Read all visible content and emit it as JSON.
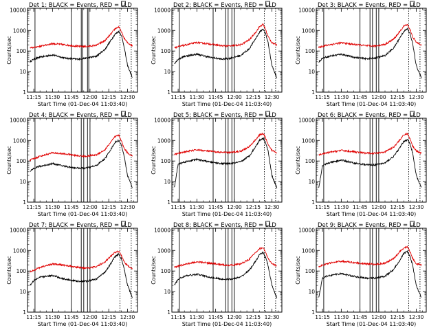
{
  "x_tick_labels": [
    "11:15",
    "11:30",
    "11:45",
    "12:00",
    "12:15",
    "12:30"
  ],
  "y_tick_labels": [
    "1",
    "10",
    "100",
    "1000",
    "10000"
  ],
  "chart_data": [
    {
      "type": "line",
      "title": "Det 1: BLACK = Events, RED = LLD",
      "xlabel": "Start Time (01-Dec-04 11:03:40)",
      "ylabel": "Counts/sec",
      "y_scale": "log",
      "ylim": [
        1,
        12000
      ],
      "xlim": [
        "11:10",
        "12:38"
      ],
      "x": [
        "11:12",
        "11:15",
        "11:20",
        "11:30",
        "11:40",
        "11:50",
        "11:57",
        "12:05",
        "12:12",
        "12:17",
        "12:20",
        "12:23",
        "12:25",
        "12:27",
        "12:30",
        "12:34"
      ],
      "series": [
        {
          "name": "BLACK = Events",
          "color": "#000000",
          "values": [
            30,
            40,
            50,
            65,
            45,
            40,
            45,
            55,
            120,
            350,
            650,
            900,
            600,
            200,
            20,
            5
          ]
        },
        {
          "name": "RED = LLD",
          "color": "#e00000",
          "values": [
            140,
            150,
            170,
            230,
            200,
            170,
            165,
            190,
            320,
            700,
            1200,
            1500,
            900,
            450,
            250,
            180
          ]
        }
      ],
      "vertical_lines": [
        "11:16",
        "11:45",
        "11:53",
        "11:54",
        "11:58",
        "11:59"
      ],
      "dotted_lines": [
        "12:24",
        "12:33"
      ]
    },
    {
      "type": "line",
      "title": "Det 2: BLACK = Events, RED = LLD",
      "xlabel": "Start Time (01-Dec-04 11:03:40)",
      "ylabel": "Counts/sec",
      "y_scale": "log",
      "ylim": [
        1,
        12000
      ],
      "xlim": [
        "11:10",
        "12:38"
      ],
      "x": [
        "11:12",
        "11:15",
        "11:20",
        "11:30",
        "11:40",
        "11:50",
        "11:57",
        "12:05",
        "12:12",
        "12:17",
        "12:20",
        "12:23",
        "12:25",
        "12:27",
        "12:30",
        "12:34"
      ],
      "series": [
        {
          "name": "BLACK = Events",
          "color": "#000000",
          "values": [
            25,
            40,
            55,
            70,
            50,
            40,
            45,
            60,
            130,
            400,
            800,
            1200,
            700,
            250,
            20,
            5
          ]
        },
        {
          "name": "RED = LLD",
          "color": "#e00000",
          "values": [
            150,
            160,
            190,
            260,
            220,
            180,
            175,
            200,
            350,
            800,
            1500,
            2000,
            1100,
            500,
            260,
            190
          ]
        }
      ],
      "vertical_lines": [
        "11:16",
        "11:43",
        "11:53",
        "11:55",
        "11:58",
        "12:00"
      ],
      "dotted_lines": [
        "12:24",
        "12:33"
      ]
    },
    {
      "type": "line",
      "title": "Det 3: BLACK = Events, RED = LLD",
      "xlabel": "Start Time (01-Dec-04 11:03:40)",
      "ylabel": "Counts/sec",
      "y_scale": "log",
      "ylim": [
        1,
        12000
      ],
      "xlim": [
        "11:10",
        "12:38"
      ],
      "x": [
        "11:12",
        "11:15",
        "11:20",
        "11:30",
        "11:40",
        "11:50",
        "11:57",
        "12:05",
        "12:12",
        "12:17",
        "12:20",
        "12:23",
        "12:25",
        "12:27",
        "12:30",
        "12:34"
      ],
      "series": [
        {
          "name": "BLACK = Events",
          "color": "#000000",
          "values": [
            30,
            45,
            55,
            70,
            50,
            42,
            45,
            60,
            140,
            450,
            900,
            1200,
            700,
            250,
            20,
            5
          ]
        },
        {
          "name": "RED = LLD",
          "color": "#e00000",
          "values": [
            150,
            170,
            200,
            250,
            210,
            180,
            175,
            210,
            380,
            900,
            1600,
            2000,
            1100,
            500,
            270,
            200
          ]
        }
      ],
      "vertical_lines": [
        "11:16",
        "11:45",
        "11:53",
        "11:55",
        "11:58",
        "12:00"
      ],
      "dotted_lines": [
        "12:24",
        "12:33"
      ]
    },
    {
      "type": "line",
      "title": "Det 4: BLACK = Events, RED = LLD",
      "xlabel": "Start Time (01-Dec-04 11:03:40)",
      "ylabel": "Counts/sec",
      "y_scale": "log",
      "ylim": [
        1,
        12000
      ],
      "xlim": [
        "11:10",
        "12:38"
      ],
      "x": [
        "11:12",
        "11:15",
        "11:20",
        "11:30",
        "11:40",
        "11:50",
        "11:57",
        "12:05",
        "12:12",
        "12:17",
        "12:20",
        "12:23",
        "12:25",
        "12:27",
        "12:30",
        "12:34"
      ],
      "series": [
        {
          "name": "BLACK = Events",
          "color": "#000000",
          "values": [
            30,
            45,
            55,
            75,
            55,
            45,
            45,
            60,
            130,
            400,
            800,
            1000,
            600,
            220,
            20,
            5
          ]
        },
        {
          "name": "RED = LLD",
          "color": "#e00000",
          "values": [
            110,
            130,
            170,
            250,
            220,
            180,
            170,
            200,
            350,
            900,
            1500,
            1800,
            1000,
            450,
            250,
            170
          ]
        }
      ],
      "vertical_lines": [
        "11:16",
        "11:45",
        "11:53",
        "11:55",
        "11:58",
        "12:00"
      ],
      "dotted_lines": [
        "12:24",
        "12:33"
      ]
    },
    {
      "type": "line",
      "title": "Det 5: BLACK = Events, RED = LLD",
      "xlabel": "Start Time (01-Dec-04 11:03:40)",
      "ylabel": "Counts/sec",
      "y_scale": "log",
      "ylim": [
        1,
        12000
      ],
      "xlim": [
        "11:10",
        "12:38"
      ],
      "x": [
        "11:12",
        "11:15",
        "11:20",
        "11:30",
        "11:40",
        "11:50",
        "11:57",
        "12:05",
        "12:12",
        "12:17",
        "12:20",
        "12:23",
        "12:25",
        "12:27",
        "12:30",
        "12:34"
      ],
      "series": [
        {
          "name": "BLACK = Events",
          "color": "#000000",
          "values": [
            5,
            70,
            90,
            120,
            90,
            75,
            75,
            90,
            180,
            500,
            1000,
            1300,
            800,
            300,
            20,
            5
          ]
        },
        {
          "name": "RED = LLD",
          "color": "#e00000",
          "values": [
            210,
            230,
            280,
            350,
            300,
            260,
            260,
            300,
            500,
            1100,
            1800,
            2200,
            1300,
            600,
            330,
            260
          ]
        }
      ],
      "vertical_lines": [
        "11:16",
        "11:43",
        "11:53",
        "11:55",
        "11:58",
        "12:00"
      ],
      "dotted_lines": [
        "12:24",
        "12:33"
      ]
    },
    {
      "type": "line",
      "title": "Det 6: BLACK = Events, RED = LLD",
      "xlabel": "Start Time (01-Dec-04 11:03:40)",
      "ylabel": "Counts/sec",
      "y_scale": "log",
      "ylim": [
        1,
        12000
      ],
      "xlim": [
        "11:10",
        "12:38"
      ],
      "x": [
        "11:12",
        "11:15",
        "11:20",
        "11:30",
        "11:40",
        "11:50",
        "11:57",
        "12:05",
        "12:12",
        "12:17",
        "12:20",
        "12:23",
        "12:25",
        "12:27",
        "12:30",
        "12:34"
      ],
      "series": [
        {
          "name": "BLACK = Events",
          "color": "#000000",
          "values": [
            5,
            60,
            80,
            110,
            80,
            65,
            65,
            80,
            170,
            450,
            900,
            1100,
            700,
            260,
            20,
            5
          ]
        },
        {
          "name": "RED = LLD",
          "color": "#e00000",
          "values": [
            200,
            220,
            260,
            330,
            280,
            240,
            240,
            280,
            480,
            1100,
            1800,
            2200,
            1200,
            550,
            320,
            240
          ]
        }
      ],
      "vertical_lines": [
        "11:16",
        "11:45",
        "11:53",
        "11:55",
        "11:58",
        "12:00"
      ],
      "dotted_lines": [
        "12:24",
        "12:33"
      ]
    },
    {
      "type": "line",
      "title": "Det 7: BLACK = Events, RED = LLD",
      "xlabel": "Start Time (01-Dec-04 11:03:40)",
      "ylabel": "Counts/sec",
      "y_scale": "log",
      "ylim": [
        1,
        12000
      ],
      "xlim": [
        "11:10",
        "12:38"
      ],
      "x": [
        "11:12",
        "11:15",
        "11:20",
        "11:30",
        "11:40",
        "11:50",
        "11:57",
        "12:05",
        "12:12",
        "12:17",
        "12:20",
        "12:23",
        "12:25",
        "12:27",
        "12:30",
        "12:34"
      ],
      "series": [
        {
          "name": "BLACK = Events",
          "color": "#000000",
          "values": [
            20,
            35,
            50,
            60,
            40,
            32,
            32,
            40,
            90,
            250,
            500,
            650,
            400,
            160,
            20,
            5
          ]
        },
        {
          "name": "RED = LLD",
          "color": "#e00000",
          "values": [
            90,
            110,
            150,
            220,
            190,
            150,
            140,
            160,
            280,
            550,
            800,
            900,
            600,
            300,
            180,
            130
          ]
        }
      ],
      "vertical_lines": [
        "11:16",
        "11:45",
        "11:53",
        "11:55",
        "11:58",
        "12:00"
      ],
      "dotted_lines": [
        "12:24",
        "12:33"
      ]
    },
    {
      "type": "line",
      "title": "Det 8: BLACK = Events, RED = LLD",
      "xlabel": "Start Time (01-Dec-04 11:03:40)",
      "ylabel": "Counts/sec",
      "y_scale": "log",
      "ylim": [
        1,
        12000
      ],
      "xlim": [
        "11:10",
        "12:38"
      ],
      "x": [
        "11:12",
        "11:15",
        "11:20",
        "11:30",
        "11:40",
        "11:50",
        "11:57",
        "12:05",
        "12:12",
        "12:17",
        "12:20",
        "12:23",
        "12:25",
        "12:27",
        "12:30",
        "12:34"
      ],
      "series": [
        {
          "name": "BLACK = Events",
          "color": "#000000",
          "values": [
            20,
            40,
            55,
            70,
            50,
            40,
            40,
            50,
            110,
            300,
            600,
            800,
            450,
            180,
            20,
            5
          ]
        },
        {
          "name": "RED = LLD",
          "color": "#e00000",
          "values": [
            150,
            170,
            210,
            280,
            240,
            200,
            190,
            220,
            380,
            800,
            1200,
            1400,
            800,
            400,
            220,
            180
          ]
        }
      ],
      "vertical_lines": [
        "11:16",
        "11:43",
        "11:53",
        "11:55",
        "11:58",
        "12:00"
      ],
      "dotted_lines": [
        "12:24",
        "12:33"
      ]
    },
    {
      "type": "line",
      "title": "Det 9: BLACK = Events, RED = LLD",
      "xlabel": "Start Time (01-Dec-04 11:03:40)",
      "ylabel": "Counts/sec",
      "y_scale": "log",
      "ylim": [
        1,
        12000
      ],
      "xlim": [
        "11:10",
        "12:38"
      ],
      "x": [
        "11:12",
        "11:15",
        "11:20",
        "11:30",
        "11:40",
        "11:50",
        "11:57",
        "12:05",
        "12:12",
        "12:17",
        "12:20",
        "12:23",
        "12:25",
        "12:27",
        "12:30",
        "12:34"
      ],
      "series": [
        {
          "name": "BLACK = Events",
          "color": "#000000",
          "values": [
            5,
            45,
            60,
            75,
            55,
            45,
            45,
            55,
            120,
            350,
            700,
            900,
            500,
            200,
            20,
            5
          ]
        },
        {
          "name": "RED = LLD",
          "color": "#e00000",
          "values": [
            170,
            190,
            240,
            300,
            260,
            220,
            210,
            240,
            400,
            900,
            1300,
            1500,
            900,
            420,
            230,
            200
          ]
        }
      ],
      "vertical_lines": [
        "11:16",
        "11:45",
        "11:53",
        "11:55",
        "11:58",
        "12:00"
      ],
      "dotted_lines": [
        "12:24",
        "12:33"
      ]
    }
  ]
}
